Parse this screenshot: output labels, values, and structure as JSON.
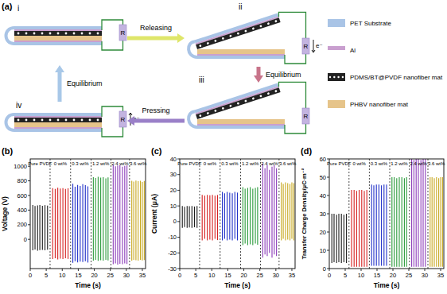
{
  "diagram": {
    "title": "(a)",
    "states": [
      {
        "label": "i",
        "open": false,
        "electron": false
      },
      {
        "label": "ii",
        "open": true,
        "electron": true
      },
      {
        "label": "iii",
        "open": true,
        "electron": false
      },
      {
        "label": "iv",
        "open": false,
        "electron": true
      }
    ],
    "transitions": [
      {
        "label": "Releasing"
      },
      {
        "label": "Equilibrium"
      },
      {
        "label": "Pressing"
      },
      {
        "label": "Equilibrium"
      }
    ],
    "resistor_label": "R",
    "electron_label": "e⁻",
    "legend": [
      {
        "label": "PET Substrate",
        "color": "#a9c4e6"
      },
      {
        "label": "Al",
        "color": "#c99fcf"
      },
      {
        "label": "PDMS/BT@PVDF nanofiber mat",
        "color": "#222222"
      },
      {
        "label": "PHBV nanofiber mat",
        "color": "#e6c48a"
      }
    ]
  },
  "chart_data": [
    {
      "type": "spike",
      "title": "(b)",
      "x_label": "Time (s)",
      "y_label": "Voltage (V)",
      "xlim": [
        0,
        36
      ],
      "xticks": [
        0,
        5,
        10,
        15,
        20,
        25,
        30,
        35
      ],
      "ylim": [
        -400,
        1100
      ],
      "yticks": [
        0,
        200,
        400,
        600,
        800,
        1000
      ],
      "separators": [
        6.2,
        12.6,
        19.0,
        25.2,
        31.0
      ],
      "series": [
        {
          "name": "Pure PVDF",
          "color": "#1a1a1a",
          "x": [
            0.8,
            1.5,
            2.3,
            3.0,
            3.8,
            4.6,
            5.4
          ],
          "values": [
            470,
            455,
            465,
            470,
            460,
            468,
            462
          ],
          "lows": [
            -150,
            -140,
            -155,
            -148,
            -145,
            -150,
            -142
          ]
        },
        {
          "name": "0 wt%",
          "color": "#d62020",
          "x": [
            7.0,
            7.8,
            8.6,
            9.4,
            10.2,
            11.0,
            11.8
          ],
          "values": [
            700,
            690,
            705,
            695,
            700,
            690,
            698
          ],
          "lows": [
            -270,
            -260,
            -275,
            -265,
            -270,
            -260,
            -268
          ]
        },
        {
          "name": "0.3 wt%",
          "color": "#2030c8",
          "x": [
            13.3,
            14.0,
            14.8,
            15.6,
            16.4,
            17.2,
            18.0
          ],
          "values": [
            760,
            720,
            745,
            730,
            755,
            740,
            725
          ],
          "lows": [
            -320,
            -300,
            -315,
            -305,
            -310,
            -300,
            -318
          ]
        },
        {
          "name": "1.2 wt%",
          "color": "#2a9a3a",
          "x": [
            19.7,
            20.4,
            21.2,
            22.0,
            22.8,
            23.6,
            24.3
          ],
          "values": [
            850,
            840,
            855,
            845,
            850,
            835,
            848
          ],
          "lows": [
            -290,
            -280,
            -295,
            -285,
            -290,
            -280,
            -288
          ]
        },
        {
          "name": "2.4 wt%",
          "color": "#8a3ab8",
          "x": [
            25.9,
            26.6,
            27.3,
            28.0,
            28.8,
            29.5,
            30.2
          ],
          "values": [
            1020,
            1000,
            1010,
            1015,
            995,
            1005,
            1010
          ],
          "lows": [
            -340,
            -330,
            -345,
            -335,
            -340,
            -330,
            -338
          ]
        },
        {
          "name": "3.6 wt%",
          "color": "#c8a820",
          "x": [
            31.7,
            32.3,
            33.0,
            33.7,
            34.4,
            35.0,
            35.6
          ],
          "values": [
            800,
            790,
            805,
            795,
            800,
            785,
            798
          ],
          "lows": [
            -290,
            -280,
            -285,
            -290,
            -280,
            -288,
            -282
          ]
        }
      ]
    },
    {
      "type": "spike",
      "title": "(c)",
      "x_label": "Time (s)",
      "y_label": "Current (μA)",
      "xlim": [
        0,
        36
      ],
      "xticks": [
        0,
        5,
        10,
        15,
        20,
        25,
        30,
        35
      ],
      "ylim": [
        -30,
        40
      ],
      "yticks": [
        -30,
        -20,
        -10,
        0,
        10,
        20,
        30,
        40
      ],
      "separators": [
        6.2,
        12.6,
        19.0,
        25.2,
        31.0
      ],
      "series": [
        {
          "name": "Pure PVDF",
          "color": "#1a1a1a",
          "x": [
            0.8,
            1.5,
            2.3,
            3.0,
            3.8,
            4.6,
            5.4
          ],
          "values": [
            10,
            9.5,
            10,
            9.8,
            10,
            9.6,
            10
          ],
          "lows": [
            -4,
            -3.5,
            -4,
            -3.8,
            -4,
            -3.6,
            -4
          ]
        },
        {
          "name": "0 wt%",
          "color": "#d62020",
          "x": [
            7.0,
            7.8,
            8.6,
            9.4,
            10.2,
            11.0,
            11.8
          ],
          "values": [
            17,
            16.5,
            17,
            16.8,
            17,
            16.5,
            17
          ],
          "lows": [
            -12,
            -11,
            -12,
            -11.5,
            -12,
            -11,
            -11.8
          ]
        },
        {
          "name": "0.3 wt%",
          "color": "#2030c8",
          "x": [
            13.3,
            14.0,
            14.8,
            15.6,
            16.4,
            17.2,
            18.0
          ],
          "values": [
            19,
            18,
            19,
            18.5,
            18,
            19,
            18.5
          ],
          "lows": [
            -12,
            -11,
            -12,
            -11.5,
            -12,
            -11,
            -12
          ]
        },
        {
          "name": "1.2 wt%",
          "color": "#2a9a3a",
          "x": [
            19.7,
            20.4,
            21.2,
            22.0,
            22.8,
            23.6,
            24.3
          ],
          "values": [
            22,
            21,
            21.5,
            22,
            21,
            21.5,
            22
          ],
          "lows": [
            -15,
            -14,
            -15,
            -14.5,
            -15,
            -14,
            -14.8
          ]
        },
        {
          "name": "2.4 wt%",
          "color": "#8a3ab8",
          "x": [
            25.9,
            26.6,
            27.3,
            28.0,
            28.8,
            29.5,
            30.2
          ],
          "values": [
            37,
            34,
            36,
            33,
            35,
            36,
            34
          ],
          "lows": [
            -23,
            -21,
            -22,
            -20,
            -23,
            -21,
            -22
          ]
        },
        {
          "name": "3.6 wt%",
          "color": "#c8a820",
          "x": [
            31.7,
            32.3,
            33.0,
            33.7,
            34.4,
            35.0,
            35.6
          ],
          "values": [
            25,
            24,
            25,
            24.5,
            24,
            25,
            24.5
          ],
          "lows": [
            -12,
            -11,
            -12,
            -11.5,
            -12,
            -11,
            -12
          ]
        }
      ]
    },
    {
      "type": "spike",
      "title": "(d)",
      "x_label": "Time (s)",
      "y_label": "Transfer Charge Density/μC·m⁻²",
      "xlim": [
        0,
        36
      ],
      "xticks": [
        0,
        5,
        10,
        15,
        20,
        25,
        30,
        35
      ],
      "ylim": [
        0,
        60
      ],
      "yticks": [
        0,
        10,
        20,
        30,
        40,
        50,
        60
      ],
      "separators": [
        6.2,
        12.6,
        19.0,
        25.2,
        31.0
      ],
      "series": [
        {
          "name": "Pure PVDF",
          "color": "#1a1a1a",
          "x": [
            0.8,
            1.5,
            2.3,
            3.0,
            3.8,
            4.6,
            5.4
          ],
          "values": [
            30,
            30,
            29.5,
            30,
            30,
            29.5,
            30
          ],
          "lows": [
            3,
            3.5,
            3,
            3.5,
            3,
            3.5,
            3
          ]
        },
        {
          "name": "0 wt%",
          "color": "#d62020",
          "x": [
            7.0,
            7.8,
            8.6,
            9.4,
            10.2,
            11.0,
            11.8
          ],
          "values": [
            43,
            43,
            42.5,
            43,
            43,
            42.5,
            43
          ],
          "lows": [
            1,
            1,
            1,
            1,
            1,
            1,
            1
          ]
        },
        {
          "name": "0.3 wt%",
          "color": "#2030c8",
          "x": [
            13.3,
            14.0,
            14.8,
            15.6,
            16.4,
            17.2,
            18.0
          ],
          "values": [
            46,
            45.5,
            46,
            46,
            45.5,
            46,
            46
          ],
          "lows": [
            1.5,
            1.5,
            1.5,
            1.5,
            1.5,
            1.5,
            1.5
          ]
        },
        {
          "name": "1.2 wt%",
          "color": "#2a9a3a",
          "x": [
            19.7,
            20.4,
            21.2,
            22.0,
            22.8,
            23.6,
            24.3
          ],
          "values": [
            50,
            50,
            49.5,
            50,
            50,
            49.5,
            50
          ],
          "lows": [
            1,
            1,
            1,
            1,
            1,
            1,
            1
          ]
        },
        {
          "name": "2.4 wt%",
          "color": "#8a3ab8",
          "x": [
            25.9,
            26.6,
            27.3,
            28.0,
            28.8,
            29.5,
            30.2
          ],
          "values": [
            60,
            59.5,
            60,
            60,
            59.5,
            60,
            60
          ],
          "lows": [
            1,
            1,
            1,
            1,
            1,
            1,
            1
          ]
        },
        {
          "name": "3.6 wt%",
          "color": "#c8a820",
          "x": [
            31.7,
            32.3,
            33.0,
            33.7,
            34.4,
            35.0,
            35.6
          ],
          "values": [
            50,
            50,
            49.5,
            50,
            49.5,
            50,
            50
          ],
          "lows": [
            1,
            1,
            1,
            1,
            1,
            1,
            1
          ]
        }
      ]
    }
  ]
}
